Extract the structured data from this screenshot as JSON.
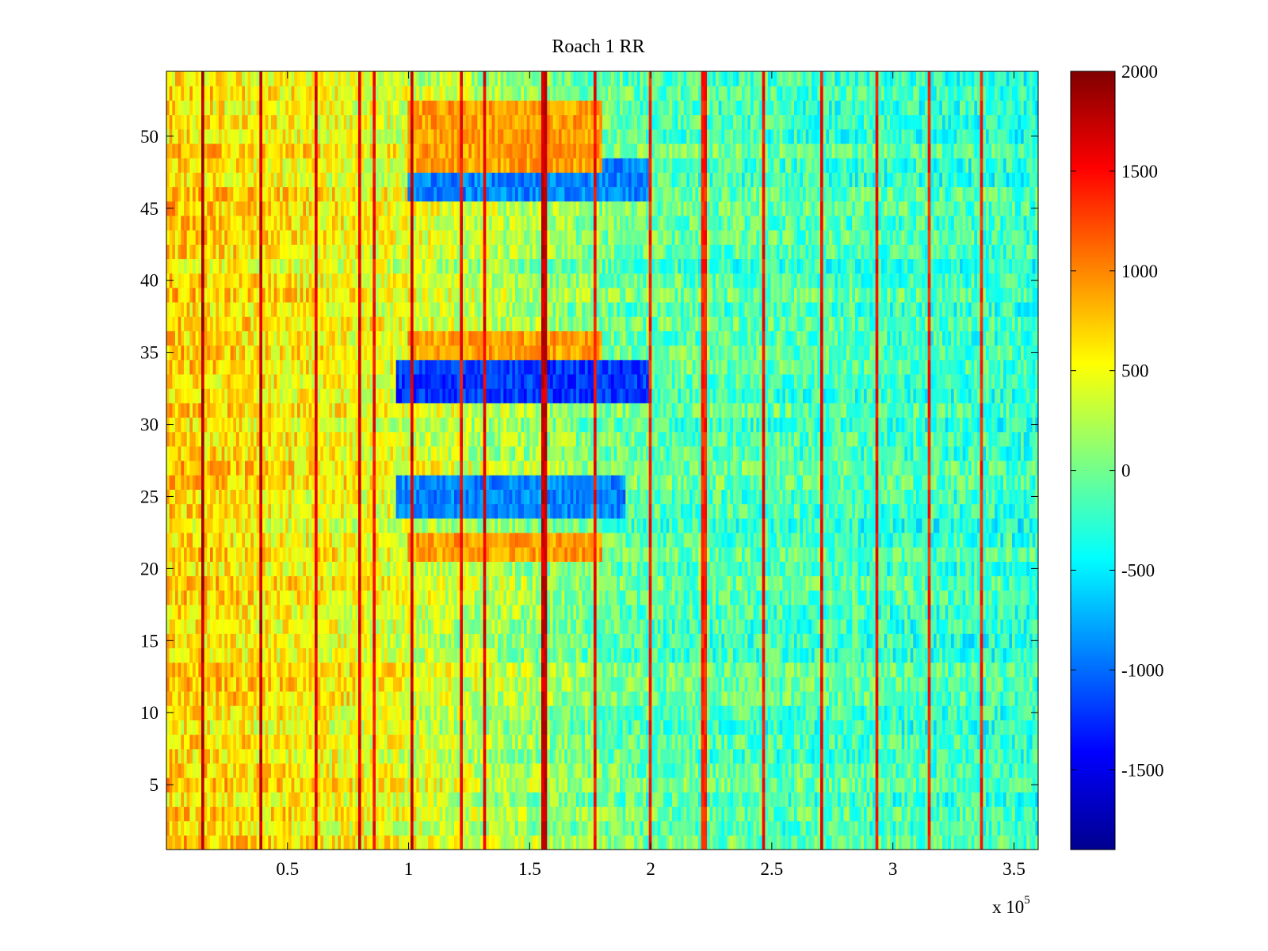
{
  "chart_data": {
    "type": "heatmap",
    "title": "Roach 1 RR",
    "xlabel": "",
    "ylabel": "",
    "colormap": "jet",
    "x_multiplier_label": "x 10",
    "x_multiplier_exponent": "5",
    "xlim": [
      0,
      360000
    ],
    "ylim": [
      0.5,
      54.5
    ],
    "x_ticks": [
      {
        "value": 50000,
        "label": "0.5"
      },
      {
        "value": 100000,
        "label": "1"
      },
      {
        "value": 150000,
        "label": "1.5"
      },
      {
        "value": 200000,
        "label": "2"
      },
      {
        "value": 250000,
        "label": "2.5"
      },
      {
        "value": 300000,
        "label": "3"
      },
      {
        "value": 350000,
        "label": "3.5"
      }
    ],
    "y_ticks": [
      {
        "value": 5,
        "label": "5"
      },
      {
        "value": 10,
        "label": "10"
      },
      {
        "value": 15,
        "label": "15"
      },
      {
        "value": 20,
        "label": "20"
      },
      {
        "value": 25,
        "label": "25"
      },
      {
        "value": 30,
        "label": "30"
      },
      {
        "value": 35,
        "label": "35"
      },
      {
        "value": 40,
        "label": "40"
      },
      {
        "value": 45,
        "label": "45"
      },
      {
        "value": 50,
        "label": "50"
      }
    ],
    "colorbar": {
      "range": [
        -1900,
        2000
      ],
      "ticks": [
        {
          "value": 2000,
          "label": "2000"
        },
        {
          "value": 1500,
          "label": "1500"
        },
        {
          "value": 1000,
          "label": "1000"
        },
        {
          "value": 500,
          "label": "500"
        },
        {
          "value": 0,
          "label": "0"
        },
        {
          "value": -500,
          "label": "-500"
        },
        {
          "value": -1000,
          "label": "-1000"
        },
        {
          "value": -1500,
          "label": "-1500"
        }
      ]
    },
    "rows": 54,
    "x_bins": 300,
    "field_description": {
      "base_trend": [
        {
          "x": 0,
          "value": 700
        },
        {
          "x": 90000,
          "value": 450
        },
        {
          "x": 200000,
          "value": -100
        },
        {
          "x": 360000,
          "value": -250
        }
      ],
      "bands": [
        {
          "y_from": 23.5,
          "y_to": 26.5,
          "x_from": 95000,
          "x_to": 190000,
          "value": -900
        },
        {
          "y_from": 31.5,
          "y_to": 34.5,
          "x_from": 95000,
          "x_to": 200000,
          "value": -1200
        },
        {
          "y_from": 45.5,
          "y_to": 48.5,
          "x_from": 100000,
          "x_to": 200000,
          "value": -900
        },
        {
          "y_from": 34.5,
          "y_to": 36.5,
          "x_from": 100000,
          "x_to": 180000,
          "value": 900
        },
        {
          "y_from": 20.5,
          "y_to": 22.5,
          "x_from": 100000,
          "x_to": 180000,
          "value": 900
        },
        {
          "y_from": 47.5,
          "y_to": 52.5,
          "x_from": 100000,
          "x_to": 180000,
          "value": 900
        }
      ],
      "stripes": [
        {
          "x": 15000,
          "value": 1800
        },
        {
          "x": 39000,
          "value": 1700
        },
        {
          "x": 62000,
          "value": 1600
        },
        {
          "x": 80000,
          "value": 1600
        },
        {
          "x": 86000,
          "value": 1500
        },
        {
          "x": 101000,
          "value": 1700
        },
        {
          "x": 122000,
          "value": 1500
        },
        {
          "x": 131000,
          "value": 1600
        },
        {
          "x": 156000,
          "value": 1700
        },
        {
          "x": 177000,
          "value": 1500
        },
        {
          "x": 200000,
          "value": 1400
        },
        {
          "x": 222000,
          "value": 1400
        },
        {
          "x": 247000,
          "value": 1500
        },
        {
          "x": 271000,
          "value": 1500
        },
        {
          "x": 293000,
          "value": 1500
        },
        {
          "x": 315000,
          "value": 1400
        },
        {
          "x": 337000,
          "value": 1400
        }
      ]
    }
  }
}
